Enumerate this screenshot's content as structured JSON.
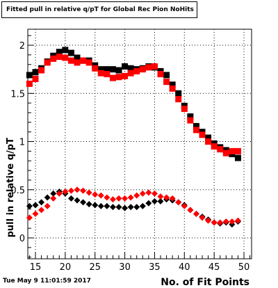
{
  "chart_data": {
    "type": "scatter",
    "title": "Fitted pull in relative q/pT for Global Rec Pion NoHits",
    "xlabel": "No. of Fit Points",
    "ylabel": "pull in relative q/pT",
    "xlim": [
      14,
      51
    ],
    "ylim": [
      -0.2,
      2.18
    ],
    "x_ticks": [
      15,
      20,
      25,
      30,
      35,
      40,
      45,
      50
    ],
    "y_ticks": [
      0,
      0.5,
      1,
      1.5,
      2
    ],
    "y_tick_labels": [
      "0",
      "0.5",
      "1",
      "1.5",
      "2"
    ],
    "grid": true,
    "x": [
      14,
      15,
      16,
      17,
      18,
      19,
      20,
      21,
      22,
      23,
      24,
      25,
      26,
      27,
      28,
      29,
      30,
      31,
      32,
      33,
      34,
      35,
      36,
      37,
      38,
      39,
      40,
      41,
      42,
      43,
      44,
      45,
      46,
      47,
      48,
      49
    ],
    "series": [
      {
        "marker": "square",
        "color": "#000000",
        "values": [
          1.69,
          1.72,
          1.76,
          1.83,
          1.89,
          1.93,
          1.95,
          1.92,
          1.87,
          1.84,
          1.84,
          1.79,
          1.75,
          1.75,
          1.75,
          1.74,
          1.78,
          1.76,
          1.75,
          1.76,
          1.78,
          1.77,
          1.73,
          1.69,
          1.59,
          1.5,
          1.37,
          1.26,
          1.16,
          1.1,
          1.04,
          0.98,
          0.94,
          0.91,
          0.87,
          0.83
        ]
      },
      {
        "marker": "square",
        "color": "#ff0000",
        "values": [
          1.6,
          1.65,
          1.74,
          1.82,
          1.86,
          1.88,
          1.87,
          1.84,
          1.82,
          1.84,
          1.82,
          1.76,
          1.71,
          1.7,
          1.66,
          1.67,
          1.68,
          1.71,
          1.73,
          1.75,
          1.77,
          1.78,
          1.7,
          1.62,
          1.55,
          1.44,
          1.34,
          1.22,
          1.12,
          1.07,
          1.0,
          0.95,
          0.92,
          0.88,
          0.9,
          0.9
        ]
      },
      {
        "marker": "diamond",
        "color": "#000000",
        "values": [
          0.33,
          0.34,
          0.37,
          0.42,
          0.46,
          0.48,
          0.46,
          0.41,
          0.39,
          0.37,
          0.35,
          0.34,
          0.33,
          0.33,
          0.32,
          0.32,
          0.31,
          0.32,
          0.32,
          0.33,
          0.36,
          0.38,
          0.38,
          0.4,
          0.39,
          0.37,
          0.34,
          0.29,
          0.25,
          0.22,
          0.19,
          0.16,
          0.15,
          0.16,
          0.14,
          0.17
        ]
      },
      {
        "marker": "diamond",
        "color": "#ff0000",
        "values": [
          0.21,
          0.25,
          0.29,
          0.33,
          0.41,
          0.46,
          0.48,
          0.49,
          0.5,
          0.49,
          0.47,
          0.45,
          0.44,
          0.42,
          0.4,
          0.41,
          0.41,
          0.42,
          0.44,
          0.46,
          0.47,
          0.46,
          0.43,
          0.42,
          0.41,
          0.37,
          0.33,
          0.29,
          0.25,
          0.21,
          0.18,
          0.16,
          0.16,
          0.17,
          0.17,
          0.18
        ]
      }
    ]
  },
  "timestamp": "Tue May  9 11:01:59 2017"
}
